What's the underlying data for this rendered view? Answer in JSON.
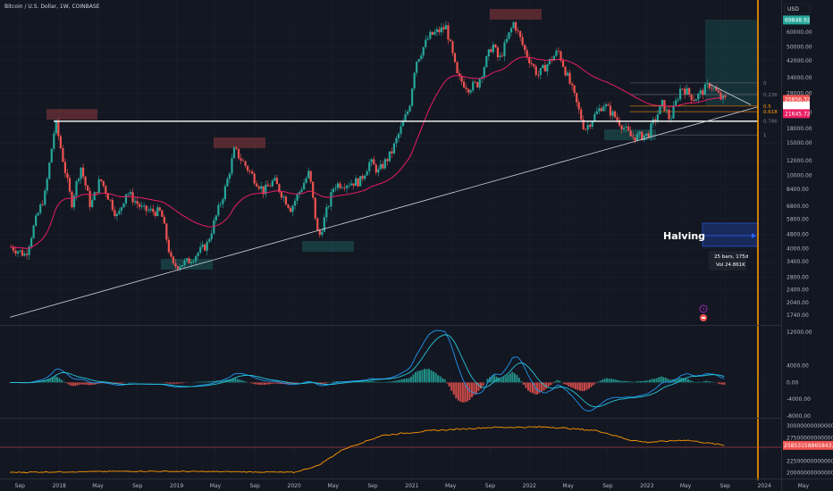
{
  "header": {
    "symbol_title": "Bitcoin / U.S. Dollar, 1W, COINBASE",
    "currency": "USD"
  },
  "colors": {
    "background": "#131722",
    "up": "#26a69a",
    "down": "#ef5350",
    "ma": "#e91e63",
    "trendline": "#d1d4dc",
    "halving_line": "#ff9800",
    "macd": "#2196f3",
    "signal": "#26c6da",
    "dominance": "#ff9800"
  },
  "chart_data": [
    {
      "type": "candlestick",
      "panel": "price",
      "y_scale": "log",
      "ylim": [
        1600,
        95000
      ],
      "y_ticks": [
        "60000.00",
        "50000.00",
        "42000.00",
        "34000.00",
        "28000.00",
        "22000.00",
        "18000.00",
        "15000.00",
        "12000.00",
        "10000.00",
        "8400.00",
        "6800.00",
        "5800.00",
        "4800.00",
        "4000.00",
        "3400.00",
        "2800.00",
        "2400.00",
        "2040.00",
        "1740.00"
      ],
      "x_ticks": [
        "Sep",
        "2018",
        "May",
        "Sep",
        "2019",
        "May",
        "Sep",
        "2020",
        "May",
        "Sep",
        "2021",
        "May",
        "Sep",
        "2022",
        "May",
        "Sep",
        "2023",
        "May",
        "Sep",
        "2024",
        "May"
      ],
      "price_tags": [
        {
          "label": "69848.92",
          "value": 69848.92,
          "color": "#26a69a"
        },
        {
          "label": "25856.32",
          "value": 25856.32,
          "color": "#ef5350"
        },
        {
          "label": "23795.03",
          "value": 23795.03,
          "color": "#ffffff"
        },
        {
          "label": "21645.72",
          "value": 21645.72,
          "color": "#e91e63"
        }
      ],
      "fib_levels": [
        {
          "label": "0",
          "value": 31800,
          "color": "#787b86"
        },
        {
          "label": "0.236",
          "value": 27500,
          "color": "#787b86"
        },
        {
          "label": "0.5",
          "value": 23800,
          "color": "#ff9800"
        },
        {
          "label": "0.618",
          "value": 22200,
          "color": "#ff9800"
        },
        {
          "label": "0.786",
          "value": 19800,
          "color": "#787b86"
        },
        {
          "label": "1",
          "value": 16600,
          "color": "#787b86"
        }
      ],
      "support_level": 19700,
      "annotations": {
        "halving": "Halving",
        "range_bars": "25 bars, 175d",
        "range_vol": "Vol 24.861K"
      },
      "anchors": [
        [
          "2017-08-01",
          4100
        ],
        [
          "2017-09-15",
          3700
        ],
        [
          "2017-10-15",
          5600
        ],
        [
          "2017-11-15",
          8000
        ],
        [
          "2017-12-17",
          19700
        ],
        [
          "2018-02-05",
          7000
        ],
        [
          "2018-03-05",
          11300
        ],
        [
          "2018-04-05",
          6800
        ],
        [
          "2018-05-05",
          9600
        ],
        [
          "2018-06-28",
          5900
        ],
        [
          "2018-07-25",
          8200
        ],
        [
          "2018-09-15",
          6500
        ],
        [
          "2018-11-10",
          6300
        ],
        [
          "2018-12-15",
          3200
        ],
        [
          "2019-02-01",
          3400
        ],
        [
          "2019-04-01",
          4200
        ],
        [
          "2019-05-30",
          8700
        ],
        [
          "2019-06-26",
          13800
        ],
        [
          "2019-08-15",
          10300
        ],
        [
          "2019-09-25",
          8200
        ],
        [
          "2019-10-26",
          9400
        ],
        [
          "2019-12-18",
          6600
        ],
        [
          "2020-02-13",
          10400
        ],
        [
          "2020-03-13",
          4500
        ],
        [
          "2020-05-01",
          8900
        ],
        [
          "2020-07-20",
          9300
        ],
        [
          "2020-08-20",
          11900
        ],
        [
          "2020-09-15",
          10500
        ],
        [
          "2020-10-25",
          13200
        ],
        [
          "2020-12-20",
          23500
        ],
        [
          "2021-01-08",
          41000
        ],
        [
          "2021-02-20",
          57000
        ],
        [
          "2021-04-14",
          64000
        ],
        [
          "2021-05-19",
          34000
        ],
        [
          "2021-06-22",
          30000
        ],
        [
          "2021-07-20",
          31500
        ],
        [
          "2021-09-05",
          52000
        ],
        [
          "2021-09-25",
          42000
        ],
        [
          "2021-11-10",
          68000
        ],
        [
          "2021-12-15",
          47000
        ],
        [
          "2022-01-24",
          35000
        ],
        [
          "2022-03-28",
          47500
        ],
        [
          "2022-05-12",
          28500
        ],
        [
          "2022-06-18",
          17800
        ],
        [
          "2022-08-15",
          24500
        ],
        [
          "2022-10-10",
          19000
        ],
        [
          "2022-11-09",
          16200
        ],
        [
          "2022-12-30",
          16500
        ],
        [
          "2023-02-16",
          24800
        ],
        [
          "2023-03-10",
          20000
        ],
        [
          "2023-04-14",
          30500
        ],
        [
          "2023-05-25",
          26000
        ],
        [
          "2023-07-13",
          31400
        ],
        [
          "2023-08-17",
          26000
        ],
        [
          "2023-09-01",
          25800
        ]
      ],
      "series": [
        {
          "name": "",
          "kind": "moving_average"
        }
      ]
    },
    {
      "type": "histogram",
      "panel": "macd",
      "y_ticks": [
        "12000.00",
        "4000.00",
        "0.00",
        "-4000.00",
        "-8000.00"
      ],
      "ylim": [
        -8000,
        12000
      ],
      "series": [
        {
          "name": "",
          "kind": "macd_line"
        },
        {
          "name": "",
          "kind": "signal_line"
        },
        {
          "name": "",
          "kind": "histogram"
        }
      ]
    },
    {
      "type": "line",
      "panel": "dominance",
      "y_ticks": [
        "30000000000000.00",
        "27500000000000.00",
        "22500000000000.00",
        "20000000000000.00"
      ],
      "ylim": [
        19500000000000,
        31000000000000
      ],
      "last_value_label": "25853158865843.56",
      "last_value": 25853158865843.56,
      "anchors": [
        [
          "2017-08-01",
          20050000000000
        ],
        [
          "2018-01-01",
          20150000000000
        ],
        [
          "2018-09-01",
          20300000000000
        ],
        [
          "2019-06-01",
          20200000000000
        ],
        [
          "2020-01-01",
          20050000000000
        ],
        [
          "2020-03-15",
          21500000000000
        ],
        [
          "2020-06-01",
          25000000000000
        ],
        [
          "2020-10-01",
          28000000000000
        ],
        [
          "2021-03-01",
          29000000000000
        ],
        [
          "2021-09-01",
          29700000000000
        ],
        [
          "2022-03-01",
          29800000000000
        ],
        [
          "2022-08-01",
          29000000000000
        ],
        [
          "2022-11-09",
          27000000000000
        ],
        [
          "2023-01-01",
          26500000000000
        ],
        [
          "2023-05-01",
          27000000000000
        ],
        [
          "2023-09-01",
          25850000000000
        ]
      ]
    }
  ]
}
